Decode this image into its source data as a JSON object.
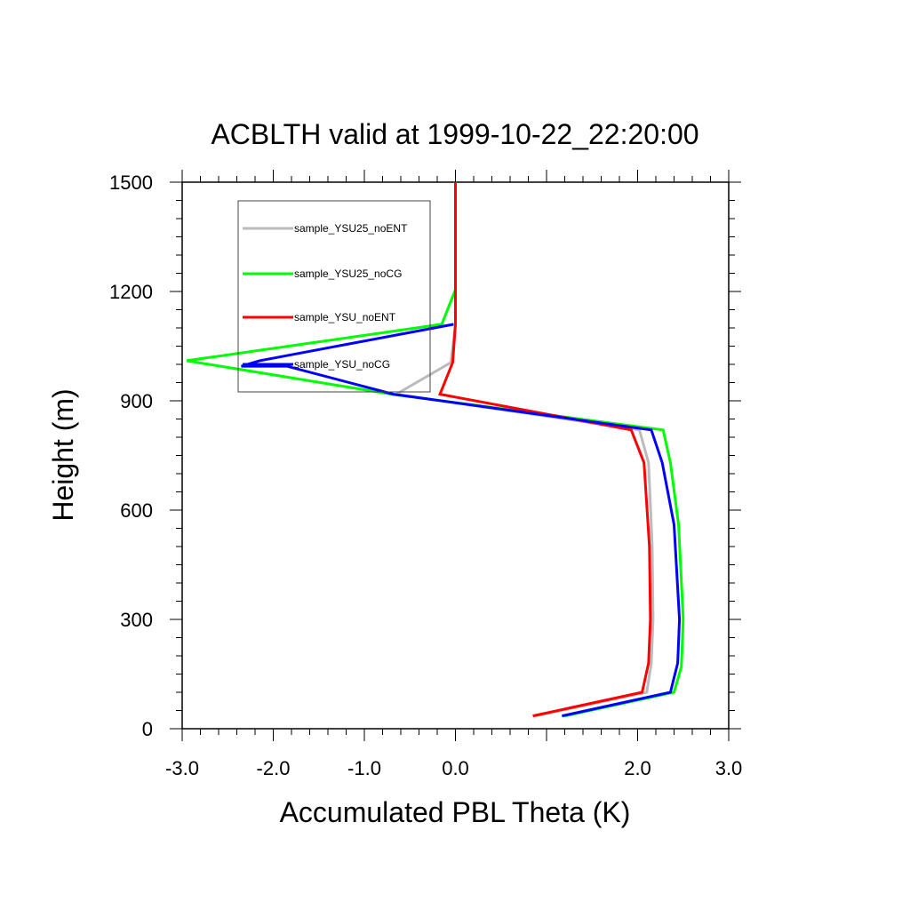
{
  "chart_data": {
    "type": "line",
    "title": "ACBLTH valid at 1999-10-22_22:20:00",
    "xlabel": "Accumulated PBL Theta (K)",
    "ylabel": "Height (m)",
    "xlim": [
      -3.0,
      3.0
    ],
    "ylim": [
      0,
      1500
    ],
    "xticks": [
      -3.0,
      -2.0,
      -1.0,
      0.0,
      2.0,
      3.0
    ],
    "xtick_labels": [
      "-3.0",
      "-2.0",
      "-1.0",
      "0.0",
      "2.0",
      "3.0"
    ],
    "yticks": [
      0,
      300,
      600,
      900,
      1200,
      1500
    ],
    "ytick_labels": [
      "0",
      "300",
      "600",
      "900",
      "1200",
      "1500"
    ],
    "grid": false,
    "legend_position": "top-left",
    "series": [
      {
        "name": "sample_YSU25_noENT",
        "color": "#bbbbbb",
        "points": [
          [
            0.88,
            35
          ],
          [
            2.1,
            100
          ],
          [
            2.15,
            180
          ],
          [
            2.17,
            300
          ],
          [
            2.16,
            500
          ],
          [
            2.12,
            730
          ],
          [
            2.02,
            820
          ],
          [
            -0.65,
            918
          ],
          [
            -0.05,
            1005
          ],
          [
            0.0,
            1110
          ],
          [
            0.0,
            1205
          ],
          [
            0.0,
            1500
          ]
        ]
      },
      {
        "name": "sample_YSU25_noCG",
        "color": "#00ff00",
        "points": [
          [
            1.2,
            35
          ],
          [
            2.4,
            100
          ],
          [
            2.48,
            170
          ],
          [
            2.5,
            300
          ],
          [
            2.45,
            560
          ],
          [
            2.36,
            730
          ],
          [
            2.28,
            820
          ],
          [
            -0.7,
            918
          ],
          [
            -2.95,
            1010
          ],
          [
            -0.15,
            1110
          ],
          [
            0.0,
            1205
          ],
          [
            0.0,
            1500
          ]
        ]
      },
      {
        "name": "sample_YSU_noENT",
        "color": "#ff0000",
        "points": [
          [
            0.85,
            35
          ],
          [
            2.05,
            100
          ],
          [
            2.12,
            180
          ],
          [
            2.14,
            300
          ],
          [
            2.13,
            500
          ],
          [
            2.07,
            730
          ],
          [
            1.93,
            820
          ],
          [
            -0.17,
            918
          ],
          [
            -0.03,
            1005
          ],
          [
            0.0,
            1110
          ],
          [
            0.0,
            1205
          ],
          [
            0.0,
            1500
          ]
        ]
      },
      {
        "name": "sample_YSU_noCG",
        "color": "#0000ff",
        "points": [
          [
            1.17,
            35
          ],
          [
            2.36,
            100
          ],
          [
            2.44,
            180
          ],
          [
            2.46,
            300
          ],
          [
            2.4,
            560
          ],
          [
            2.27,
            730
          ],
          [
            2.15,
            820
          ],
          [
            -0.68,
            918
          ],
          [
            -1.85,
            995
          ],
          [
            -2.35,
            995
          ],
          [
            -2.15,
            1010
          ],
          [
            -0.02,
            1110
          ]
        ]
      }
    ]
  }
}
